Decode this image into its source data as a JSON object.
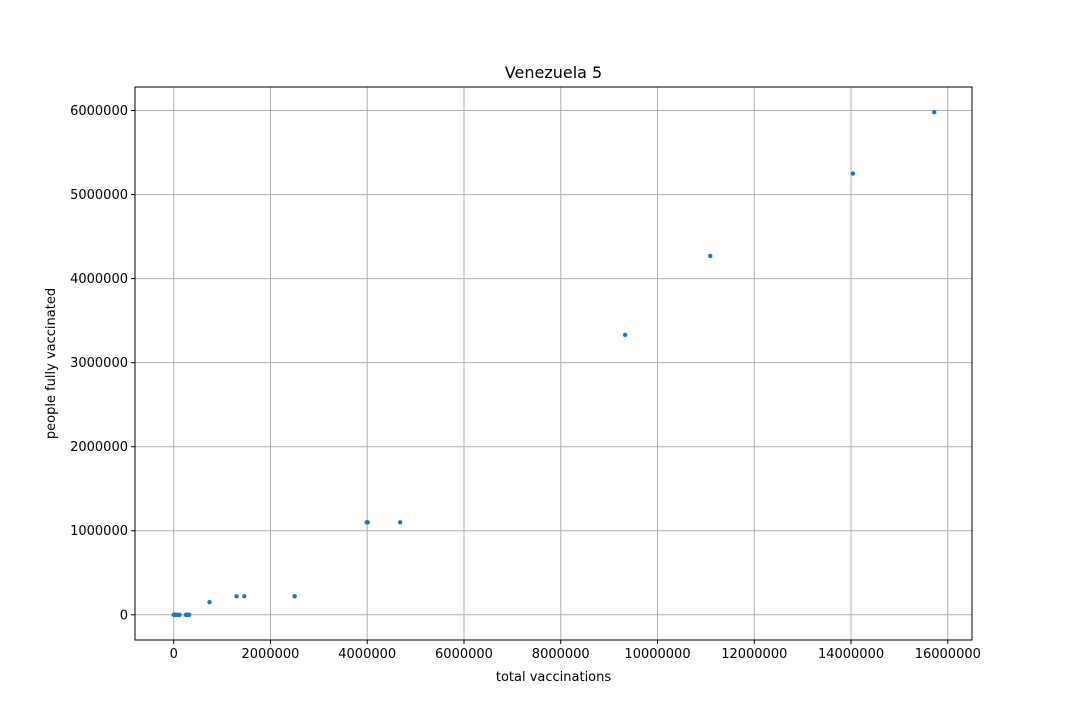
{
  "chart_data": {
    "type": "scatter",
    "title": "Venezuela 5",
    "xlabel": "total vaccinations",
    "ylabel": "people fully vaccinated",
    "xlim": [
      -800000,
      16500000
    ],
    "ylim": [
      -300000,
      6280000
    ],
    "xticks": [
      0,
      2000000,
      4000000,
      6000000,
      8000000,
      10000000,
      12000000,
      14000000,
      16000000
    ],
    "xtick_labels": [
      "0",
      "2000000",
      "4000000",
      "6000000",
      "8000000",
      "10000000",
      "12000000",
      "14000000",
      "16000000"
    ],
    "yticks": [
      0,
      1000000,
      2000000,
      3000000,
      4000000,
      5000000,
      6000000
    ],
    "ytick_labels": [
      "0",
      "1000000",
      "2000000",
      "3000000",
      "4000000",
      "5000000",
      "6000000"
    ],
    "grid": true,
    "marker_color": "#1f77b4",
    "points": [
      {
        "x": 0,
        "y": 0
      },
      {
        "x": 20000,
        "y": 0
      },
      {
        "x": 40000,
        "y": 0
      },
      {
        "x": 60000,
        "y": 0
      },
      {
        "x": 100000,
        "y": 0
      },
      {
        "x": 120000,
        "y": 0
      },
      {
        "x": 250000,
        "y": 0
      },
      {
        "x": 270000,
        "y": 0
      },
      {
        "x": 290000,
        "y": 0
      },
      {
        "x": 300000,
        "y": 0
      },
      {
        "x": 320000,
        "y": 0
      },
      {
        "x": 740000,
        "y": 150000
      },
      {
        "x": 1300000,
        "y": 220000
      },
      {
        "x": 1460000,
        "y": 220000
      },
      {
        "x": 2500000,
        "y": 220000
      },
      {
        "x": 3990000,
        "y": 1100000
      },
      {
        "x": 4010000,
        "y": 1100000
      },
      {
        "x": 4680000,
        "y": 1100000
      },
      {
        "x": 9330000,
        "y": 3330000
      },
      {
        "x": 11090000,
        "y": 4270000
      },
      {
        "x": 14040000,
        "y": 5250000
      },
      {
        "x": 15720000,
        "y": 5980000
      }
    ]
  }
}
